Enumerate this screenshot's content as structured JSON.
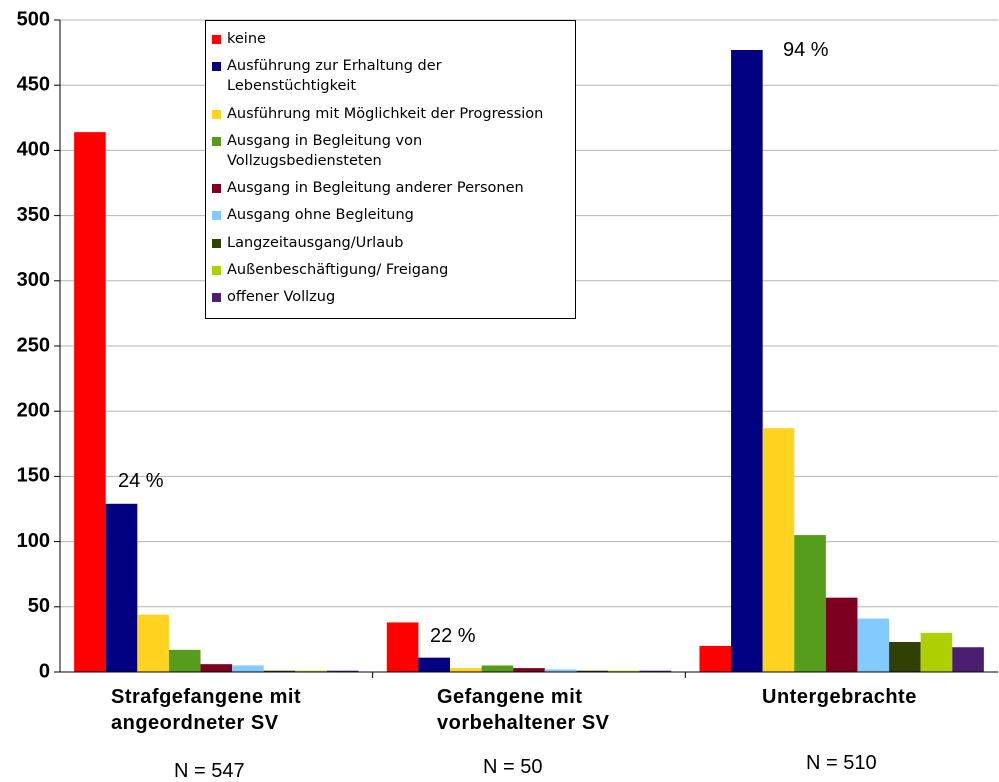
{
  "chart_data": {
    "type": "bar",
    "categories": [
      "Strafgefangene mit angeordneter SV",
      "Gefangene mit vorbehaltener SV",
      "Untergebrachte"
    ],
    "n_labels": [
      "N = 547",
      "N = 50",
      "N = 510"
    ],
    "annotations": [
      "24 %",
      "22 %",
      "94 %"
    ],
    "series": [
      {
        "name": "keine",
        "color": "#ff0000",
        "values": [
          414,
          38,
          20
        ]
      },
      {
        "name": "Ausführung zur Erhaltung der Lebenstüchtigkeit",
        "color": "#000080",
        "values": [
          129,
          11,
          477
        ]
      },
      {
        "name": "Ausführung mit Möglichkeit der Progression",
        "color": "#ffd320",
        "values": [
          44,
          3,
          187
        ]
      },
      {
        "name": "Ausgang in Begleitung von Vollzugsbediensteten",
        "color": "#579d1c",
        "values": [
          17,
          5,
          105
        ]
      },
      {
        "name": "Ausgang in Begleitung anderer Personen",
        "color": "#7e0021",
        "values": [
          6,
          3,
          57
        ]
      },
      {
        "name": "Ausgang ohne Begleitung",
        "color": "#83caff",
        "values": [
          5,
          2,
          41
        ]
      },
      {
        "name": "Langzeitausgang/Urlaub",
        "color": "#314004",
        "values": [
          1,
          1,
          23
        ]
      },
      {
        "name": "Außenbeschäftigung/ Freigang",
        "color": "#aecf00",
        "values": [
          1,
          1,
          30
        ]
      },
      {
        "name": "offener Vollzug",
        "color": "#4b1f6f",
        "values": [
          1,
          1,
          19
        ]
      }
    ],
    "ylim": [
      0,
      500
    ],
    "yticks": [
      0,
      50,
      100,
      150,
      200,
      250,
      300,
      350,
      400,
      450,
      500
    ],
    "grid": true
  }
}
